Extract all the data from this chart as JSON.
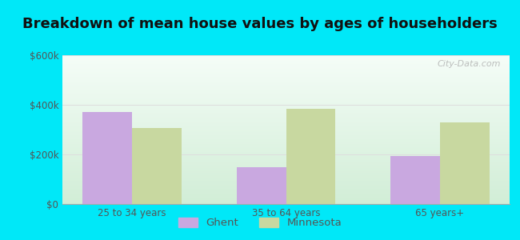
{
  "title": "Breakdown of mean house values by ages of householders",
  "categories": [
    "25 to 34 years",
    "35 to 64 years",
    "65 years+"
  ],
  "ghent_values": [
    370000,
    150000,
    195000
  ],
  "minnesota_values": [
    305000,
    385000,
    330000
  ],
  "bar_color_ghent": "#c9a8e0",
  "bar_color_minnesota": "#c8d8a0",
  "ylim": [
    0,
    600000
  ],
  "yticks": [
    0,
    200000,
    400000,
    600000
  ],
  "ytick_labels": [
    "$0",
    "$200k",
    "$400k",
    "$600k"
  ],
  "background_outer": "#00e8f8",
  "grid_color": "#dddddd",
  "legend_labels": [
    "Ghent",
    "Minnesota"
  ],
  "title_fontsize": 13,
  "tick_fontsize": 8.5,
  "legend_fontsize": 9.5,
  "bar_width": 0.32,
  "watermark": "City-Data.com",
  "title_color": "#111111",
  "tick_color": "#555555"
}
